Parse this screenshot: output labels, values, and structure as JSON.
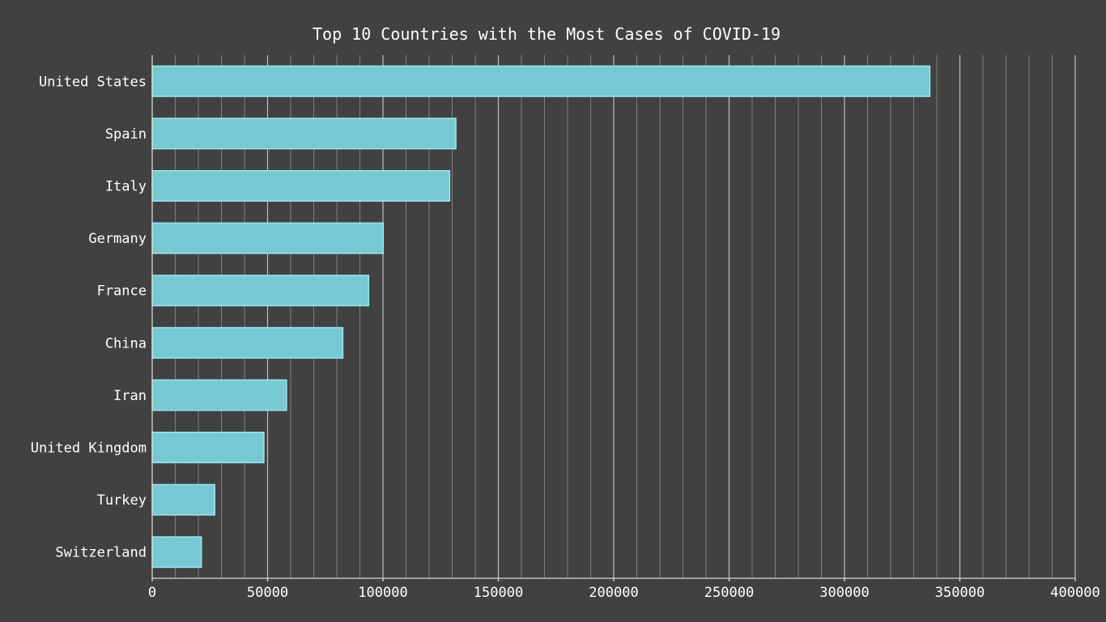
{
  "chart_data": {
    "type": "bar",
    "orientation": "horizontal",
    "title": "Top 10 Countries with the Most Cases of COVID-19",
    "xlabel": "",
    "ylabel": "",
    "categories": [
      "United States",
      "Spain",
      "Italy",
      "Germany",
      "France",
      "China",
      "Iran",
      "United Kingdom",
      "Turkey",
      "Switzerland"
    ],
    "values": [
      337000,
      131600,
      128900,
      100100,
      93800,
      82600,
      58200,
      48400,
      27100,
      21300
    ],
    "xlim": [
      0,
      400000
    ],
    "xticks": [
      0,
      50000,
      100000,
      150000,
      200000,
      250000,
      300000,
      350000,
      400000
    ],
    "xtick_labels": [
      "0",
      "50000",
      "100000",
      "150000",
      "200000",
      "250000",
      "300000",
      "350000",
      "400000"
    ],
    "minor_step": 10000,
    "grid": true,
    "legend": "none",
    "colors": {
      "background": "#414141",
      "bar_fill": "#76c9d2",
      "bar_edge": "#9de6ee",
      "text": "#ffffff"
    }
  }
}
